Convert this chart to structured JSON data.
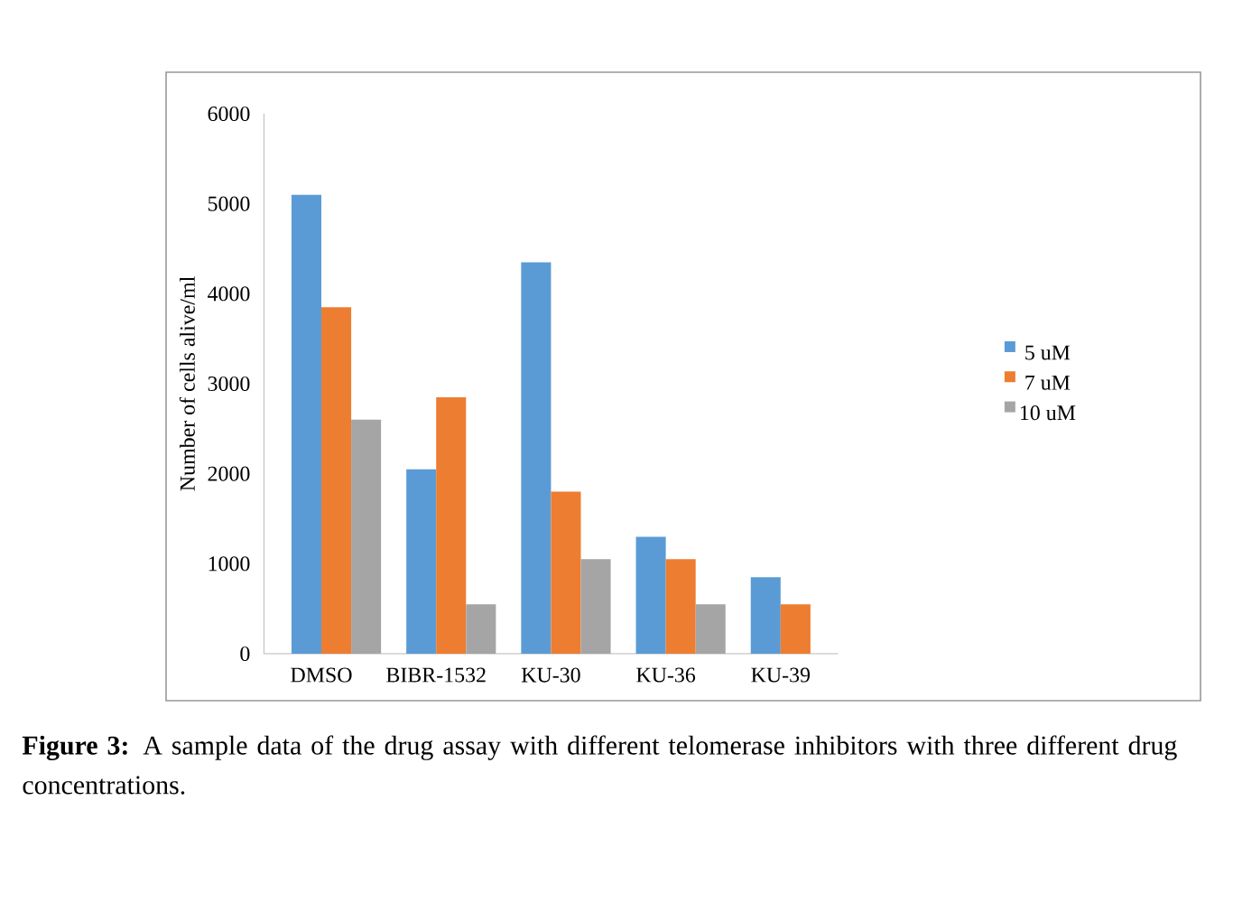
{
  "chart_data": {
    "type": "bar",
    "ylabel": "Number of cells alive/ml",
    "categories": [
      "DMSO",
      "BIBR-1532",
      "KU-30",
      "KU-36",
      "KU-39"
    ],
    "series": [
      {
        "name": "5  uM",
        "color": "#5b9bd5",
        "values": [
          5100,
          2050,
          4350,
          1300,
          850
        ]
      },
      {
        "name": "7  uM",
        "color": "#ed7d31",
        "values": [
          3850,
          2850,
          1800,
          1050,
          550
        ]
      },
      {
        "name": "10 uM",
        "color": "#a5a5a5",
        "values": [
          2600,
          550,
          1050,
          550,
          null
        ]
      }
    ],
    "ylim": [
      0,
      6000
    ],
    "yticks": [
      0,
      1000,
      2000,
      3000,
      4000,
      5000,
      6000
    ],
    "legend": "right",
    "annotations": [
      "**Figure 3:** A sample data of the drug assay with different telomerase inhibitors with three different drug concentrations."
    ]
  }
}
